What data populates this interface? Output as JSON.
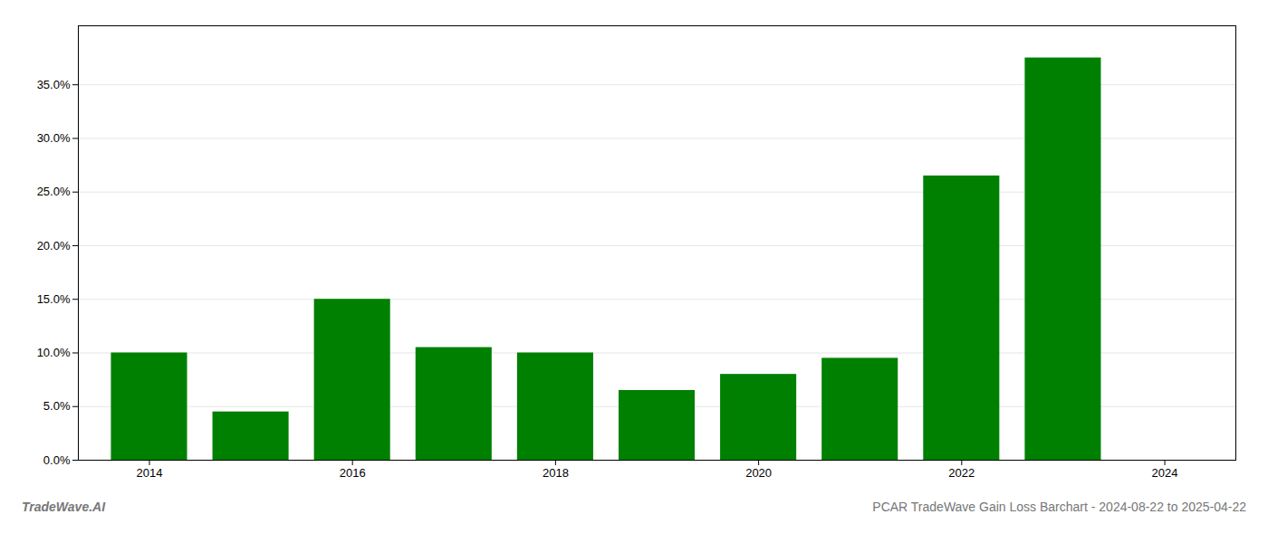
{
  "chart_data": {
    "type": "bar",
    "x": [
      2014,
      2015,
      2016,
      2017,
      2018,
      2019,
      2020,
      2021,
      2022,
      2023,
      2024
    ],
    "values": [
      0.1,
      0.045,
      0.15,
      0.105,
      0.1,
      0.065,
      0.08,
      0.095,
      0.265,
      0.375,
      0.0
    ],
    "color": "#008000",
    "xlim": [
      2013.3,
      2024.7
    ],
    "xticks": [
      2014,
      2016,
      2018,
      2020,
      2022,
      2024
    ],
    "ylim": [
      0,
      0.405
    ],
    "yticks": [
      {
        "value": 0.0,
        "label": "0.0%"
      },
      {
        "value": 0.05,
        "label": "5.0%"
      },
      {
        "value": 0.1,
        "label": "10.0%"
      },
      {
        "value": 0.15,
        "label": "15.0%"
      },
      {
        "value": 0.2,
        "label": "20.0%"
      },
      {
        "value": 0.25,
        "label": "25.0%"
      },
      {
        "value": 0.3,
        "label": "30.0%"
      },
      {
        "value": 0.35,
        "label": "35.0%"
      }
    ],
    "grid": true,
    "annotations": [
      "TradeWave.AI",
      "PCAR TradeWave Gain Loss Barchart - 2024-08-22 to 2025-04-22"
    ]
  }
}
